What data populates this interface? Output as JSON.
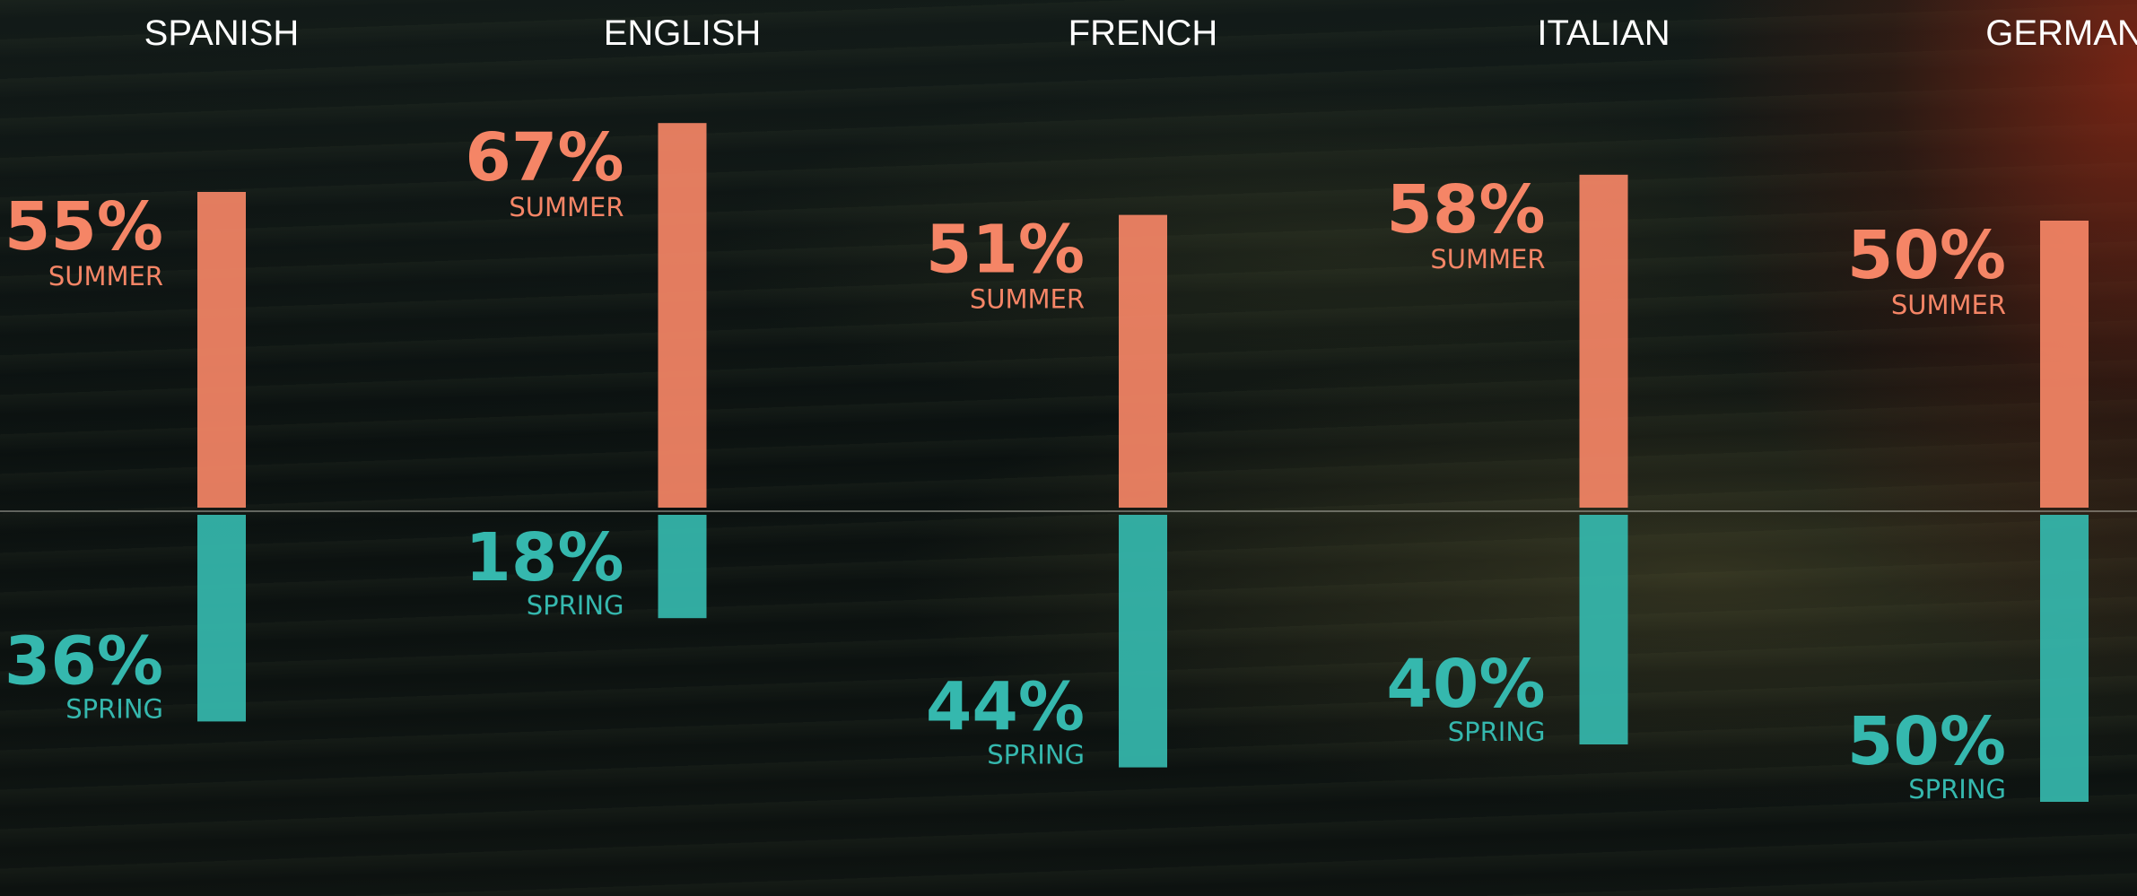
{
  "chart_data": {
    "type": "bar",
    "categories": [
      "SPANISH",
      "ENGLISH",
      "FRENCH",
      "ITALIAN",
      "GERMAN"
    ],
    "series": [
      {
        "name": "SUMMER",
        "color": "#f58566",
        "values": [
          55,
          67,
          51,
          58,
          50
        ],
        "value_labels": [
          "55%",
          "67%",
          "51%",
          "58%",
          "50%"
        ]
      },
      {
        "name": "SPRING",
        "color": "#35b8ae",
        "values": [
          36,
          18,
          44,
          40,
          50
        ],
        "value_labels": [
          "36%",
          "18%",
          "44%",
          "40%",
          "50%"
        ]
      }
    ]
  }
}
